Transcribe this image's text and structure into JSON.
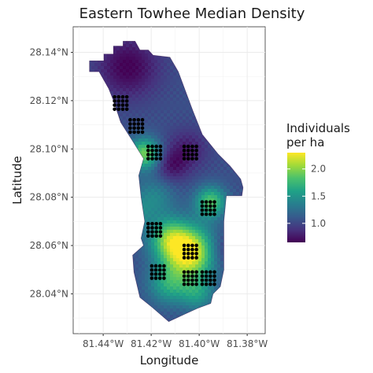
{
  "chart_data": {
    "type": "heatmap",
    "title": "Eastern Towhee Median Density",
    "xlabel": "Longitude",
    "ylabel": "Latitude",
    "xlim": [
      -81.4525,
      -81.3725
    ],
    "ylim": [
      28.0235,
      28.1506
    ],
    "x_ticks": [
      {
        "value": -81.44,
        "label": "81.44°W"
      },
      {
        "value": -81.42,
        "label": "81.42°W"
      },
      {
        "value": -81.4,
        "label": "81.40°W"
      },
      {
        "value": -81.38,
        "label": "81.38°W"
      }
    ],
    "y_ticks": [
      {
        "value": 28.04,
        "label": "28.04°N"
      },
      {
        "value": 28.06,
        "label": "28.06°N"
      },
      {
        "value": 28.08,
        "label": "28.08°N"
      },
      {
        "value": 28.1,
        "label": "28.10°N"
      },
      {
        "value": 28.12,
        "label": "28.12°N"
      },
      {
        "value": 28.14,
        "label": "28.14°N"
      }
    ],
    "grid": true,
    "legend": {
      "title_lines": [
        "Individuals",
        "per ha"
      ],
      "position": "right",
      "range": [
        0.65,
        2.3
      ],
      "ticks": [
        {
          "value": 1.0,
          "label": "1.0"
        },
        {
          "value": 1.5,
          "label": "1.5"
        },
        {
          "value": 2.0,
          "label": "2.0"
        }
      ],
      "colors": [
        "#440154",
        "#46327e",
        "#365c8d",
        "#277f8e",
        "#1fa187",
        "#4ac16d",
        "#a0da39",
        "#fde725"
      ]
    },
    "study_area_outline": [
      [
        -81.4397,
        28.1393
      ],
      [
        -81.4357,
        28.1393
      ],
      [
        -81.4357,
        28.1426
      ],
      [
        -81.4317,
        28.1426
      ],
      [
        -81.4317,
        28.1446
      ],
      [
        -81.4267,
        28.1446
      ],
      [
        -81.4247,
        28.141
      ],
      [
        -81.4212,
        28.141
      ],
      [
        -81.4192,
        28.1388
      ],
      [
        -81.4122,
        28.138
      ],
      [
        -81.4087,
        28.132
      ],
      [
        -81.4057,
        28.124
      ],
      [
        -81.4027,
        28.116
      ],
      [
        -81.3987,
        28.106
      ],
      [
        -81.3922,
        28.098
      ],
      [
        -81.3872,
        28.093
      ],
      [
        -81.3827,
        28.0875
      ],
      [
        -81.3817,
        28.084
      ],
      [
        -81.3822,
        28.0806
      ],
      [
        -81.3887,
        28.0806
      ],
      [
        -81.3897,
        28.07
      ],
      [
        -81.3897,
        28.05
      ],
      [
        -81.3912,
        28.043
      ],
      [
        -81.3942,
        28.04
      ],
      [
        -81.3952,
        28.036
      ],
      [
        -81.4007,
        28.034
      ],
      [
        -81.4062,
        28.0315
      ],
      [
        -81.4127,
        28.0285
      ],
      [
        -81.4197,
        28.0345
      ],
      [
        -81.4247,
        28.0385
      ],
      [
        -81.4272,
        28.049
      ],
      [
        -81.4277,
        28.056
      ],
      [
        -81.4232,
        28.06
      ],
      [
        -81.4242,
        28.063
      ],
      [
        -81.4227,
        28.07
      ],
      [
        -81.4242,
        28.08
      ],
      [
        -81.4252,
        28.089
      ],
      [
        -81.4232,
        28.096
      ],
      [
        -81.4282,
        28.104
      ],
      [
        -81.4327,
        28.111
      ],
      [
        -81.4357,
        28.12
      ],
      [
        -81.4377,
        28.125
      ],
      [
        -81.4417,
        28.132
      ],
      [
        -81.4457,
        28.132
      ],
      [
        -81.4457,
        28.1365
      ],
      [
        -81.4397,
        28.1365
      ]
    ],
    "density_field": {
      "base": 1.05,
      "hotspots": [
        {
          "x": -81.4037,
          "y": 28.057,
          "value": 1.25,
          "spread": 0.0075
        },
        {
          "x": -81.4127,
          "y": 28.063,
          "value": 0.7,
          "spread": 0.006
        },
        {
          "x": -81.4227,
          "y": 28.098,
          "value": 0.9,
          "spread": 0.0045
        },
        {
          "x": -81.3952,
          "y": 28.078,
          "value": 0.8,
          "spread": 0.0045
        },
        {
          "x": -81.4127,
          "y": 28.044,
          "value": 0.55,
          "spread": 0.006
        },
        {
          "x": -81.4007,
          "y": 28.04,
          "value": 0.45,
          "spread": 0.005
        },
        {
          "x": -81.4187,
          "y": 28.08,
          "value": 0.35,
          "spread": 0.006
        },
        {
          "x": -81.4267,
          "y": 28.073,
          "value": 0.3,
          "spread": 0.0045
        }
      ],
      "coldspots": [
        {
          "x": -81.4297,
          "y": 28.134,
          "value": 0.4,
          "spread": 0.009
        },
        {
          "x": -81.4117,
          "y": 28.093,
          "value": 0.3,
          "spread": 0.005
        },
        {
          "x": -81.4047,
          "y": 28.1,
          "value": 0.25,
          "spread": 0.006
        },
        {
          "x": -81.3907,
          "y": 28.058,
          "value": 0.25,
          "spread": 0.005
        }
      ]
    },
    "survey_grids": [
      {
        "x": -81.4327,
        "y": 28.119
      },
      {
        "x": -81.4262,
        "y": 28.1095
      },
      {
        "x": -81.4187,
        "y": 28.0985
      },
      {
        "x": -81.4037,
        "y": 28.0985
      },
      {
        "x": -81.3962,
        "y": 28.0755
      },
      {
        "x": -81.4187,
        "y": 28.0665
      },
      {
        "x": -81.4037,
        "y": 28.0575
      },
      {
        "x": -81.4172,
        "y": 28.049
      },
      {
        "x": -81.4037,
        "y": 28.0465
      },
      {
        "x": -81.3962,
        "y": 28.0465
      }
    ]
  }
}
